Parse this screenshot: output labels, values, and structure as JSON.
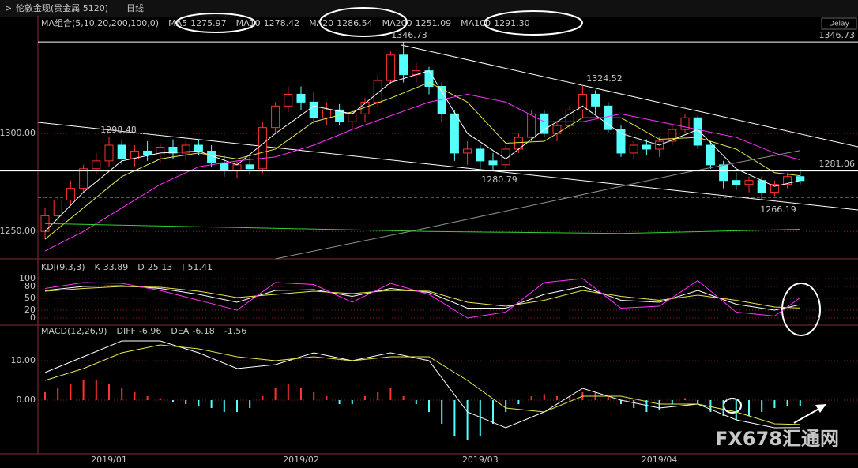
{
  "header": {
    "symbol": "伦敦金现(贵金属 5120)",
    "period": "日线",
    "delay": "Delay"
  },
  "watermark": "FX678汇通网",
  "chart_data": [
    {
      "type": "candlestick",
      "legend_title": "MA组合(5,10,20,200,100,0)",
      "categories": [
        null,
        null,
        null,
        null,
        null,
        "2019/01",
        null,
        null,
        null,
        null,
        null,
        null,
        null,
        null,
        null,
        null,
        null,
        null,
        null,
        null,
        "2019/02",
        null,
        null,
        null,
        null,
        null,
        null,
        null,
        null,
        null,
        null,
        null,
        null,
        null,
        "2019/03",
        null,
        null,
        null,
        null,
        null,
        null,
        null,
        null,
        null,
        null,
        null,
        null,
        null,
        "2019/04",
        null,
        null,
        null,
        null,
        null,
        null,
        null,
        null,
        null,
        null,
        null
      ],
      "candles": {
        "open": [
          1250,
          1258,
          1266,
          1272,
          1282,
          1286,
          1294,
          1287,
          1291,
          1289,
          1293,
          1290,
          1294,
          1291,
          1285,
          1281,
          1284,
          1282,
          1303,
          1314,
          1320,
          1316,
          1308,
          1312,
          1306,
          1310,
          1316,
          1327,
          1340,
          1330,
          1332,
          1324,
          1310,
          1290,
          1292,
          1286,
          1284,
          1292,
          1298,
          1310,
          1300,
          1304,
          1312,
          1320,
          1314,
          1302,
          1290,
          1294,
          1292,
          1296,
          1302,
          1308,
          1294,
          1284,
          1276,
          1274,
          1276,
          1270,
          1274,
          1278
        ],
        "high": [
          1262,
          1268,
          1276,
          1284,
          1290,
          1298.48,
          1297,
          1294,
          1296,
          1295,
          1297,
          1296,
          1297,
          1294,
          1289,
          1286,
          1288,
          1306,
          1316,
          1324,
          1324,
          1321,
          1316,
          1315,
          1312,
          1318,
          1330,
          1342,
          1346.73,
          1336,
          1334,
          1326,
          1312,
          1296,
          1294,
          1290,
          1294,
          1300,
          1312,
          1312,
          1306,
          1314,
          1324.52,
          1322,
          1316,
          1304,
          1296,
          1297,
          1298,
          1304,
          1310,
          1309,
          1296,
          1286,
          1280,
          1278,
          1278,
          1276,
          1280,
          1282
        ],
        "low": [
          1246,
          1255,
          1263,
          1270,
          1279,
          1283,
          1284,
          1283,
          1286,
          1285,
          1287,
          1286,
          1289,
          1283,
          1278,
          1277,
          1279,
          1280,
          1300,
          1311,
          1312,
          1305,
          1304,
          1304,
          1302,
          1306,
          1314,
          1325,
          1326,
          1326,
          1320,
          1306,
          1286,
          1284,
          1282,
          1280.79,
          1282,
          1290,
          1296,
          1298,
          1296,
          1302,
          1308,
          1310,
          1300,
          1288,
          1287,
          1289,
          1288,
          1294,
          1300,
          1292,
          1282,
          1272,
          1271,
          1270,
          1266.19,
          1268,
          1272,
          1274
        ],
        "close": [
          1258,
          1266,
          1272,
          1282,
          1286,
          1294,
          1287,
          1291,
          1289,
          1293,
          1290,
          1294,
          1291,
          1285,
          1281,
          1284,
          1282,
          1303,
          1314,
          1320,
          1316,
          1308,
          1312,
          1306,
          1310,
          1316,
          1327,
          1340,
          1330,
          1332,
          1324,
          1310,
          1290,
          1292,
          1286,
          1284,
          1292,
          1298,
          1310,
          1300,
          1304,
          1312,
          1320,
          1314,
          1302,
          1290,
          1294,
          1292,
          1296,
          1302,
          1308,
          1294,
          1284,
          1276,
          1274,
          1276,
          1270,
          1274,
          1278,
          1275.97
        ]
      },
      "up_color": "#ff3232",
      "down_color": "#54ffff",
      "ylim": [
        1236,
        1352
      ],
      "yticks": [
        {
          "value": 1250,
          "label": "1250.00"
        },
        {
          "value": 1300,
          "label": "1300.00"
        }
      ],
      "reference_line": 1281.06,
      "series": [
        {
          "name": "MA5",
          "color": "#ffffff",
          "x": [
            0,
            3,
            6,
            9,
            12,
            15,
            18,
            21,
            24,
            27,
            30,
            33,
            36,
            39,
            42,
            45,
            48,
            51,
            54,
            57,
            59
          ],
          "values": [
            1250,
            1270,
            1286,
            1290,
            1291,
            1284,
            1300,
            1314,
            1310,
            1326,
            1332,
            1300,
            1287,
            1302,
            1314,
            1300,
            1294,
            1302,
            1282,
            1273,
            1275.97
          ]
        },
        {
          "name": "MA10",
          "color": "#e6e64c",
          "x": [
            0,
            3,
            6,
            9,
            12,
            15,
            18,
            21,
            24,
            27,
            30,
            33,
            36,
            39,
            42,
            45,
            48,
            51,
            54,
            57,
            59
          ],
          "values": [
            1246,
            1262,
            1278,
            1287,
            1290,
            1287,
            1292,
            1306,
            1311,
            1318,
            1326,
            1316,
            1295,
            1296,
            1308,
            1308,
            1297,
            1298,
            1292,
            1280,
            1278.42
          ]
        },
        {
          "name": "MA20",
          "color": "#ff32ff",
          "x": [
            0,
            3,
            6,
            9,
            12,
            15,
            18,
            21,
            24,
            27,
            30,
            33,
            36,
            39,
            42,
            45,
            48,
            51,
            54,
            57,
            59
          ],
          "values": [
            1240,
            1250,
            1262,
            1274,
            1283,
            1286,
            1288,
            1294,
            1302,
            1309,
            1316,
            1320,
            1316,
            1306,
            1306,
            1310,
            1306,
            1302,
            1298,
            1290,
            1286.54
          ]
        },
        {
          "name": "MA200",
          "color": "#32d232",
          "x": [
            0,
            15,
            30,
            45,
            59
          ],
          "values": [
            1254,
            1252,
            1250,
            1249,
            1251.09
          ]
        },
        {
          "name": "MA100",
          "color": "#909090",
          "value_label": "1291.30",
          "x": [
            18,
            30,
            40,
            50,
            59
          ],
          "values": [
            1236,
            1252,
            1266,
            1280,
            1291.3
          ]
        }
      ]
    },
    {
      "type": "line",
      "legend_title": "KDJ(9,3,3)",
      "x": [
        0,
        3,
        6,
        9,
        12,
        15,
        18,
        21,
        24,
        27,
        30,
        33,
        36,
        39,
        42,
        45,
        48,
        51,
        54,
        57,
        59
      ],
      "ylim": [
        -14,
        126
      ],
      "yticks": [
        0,
        20,
        50,
        80,
        100
      ],
      "series": [
        {
          "name": "K",
          "color": "#ffffff",
          "values": [
            70,
            80,
            82,
            75,
            60,
            40,
            70,
            72,
            55,
            75,
            65,
            25,
            25,
            60,
            80,
            45,
            40,
            70,
            35,
            20,
            33.89
          ]
        },
        {
          "name": "D",
          "color": "#e6e64c",
          "values": [
            68,
            75,
            80,
            78,
            68,
            52,
            60,
            68,
            62,
            70,
            68,
            40,
            30,
            45,
            70,
            55,
            45,
            58,
            45,
            28,
            25.13
          ]
        },
        {
          "name": "J",
          "color": "#ff32ff",
          "values": [
            75,
            90,
            88,
            70,
            45,
            20,
            90,
            85,
            40,
            88,
            60,
            0,
            15,
            90,
            100,
            25,
            30,
            95,
            15,
            5,
            51.41
          ]
        }
      ]
    },
    {
      "type": "macd",
      "legend_title": "MACD(12,26,9)",
      "x": [
        0,
        3,
        6,
        9,
        12,
        15,
        18,
        21,
        24,
        27,
        30,
        33,
        36,
        39,
        42,
        45,
        48,
        51,
        54,
        57,
        59
      ],
      "ylim": [
        -13.6,
        17.4
      ],
      "yticks": [
        {
          "value": 0,
          "label": "0.00"
        },
        {
          "value": 10,
          "label": "10.00"
        }
      ],
      "up_color": "#ff3232",
      "down_color": "#54ffff",
      "histogram": [
        2,
        3,
        4,
        5,
        5,
        4,
        3,
        2,
        1,
        0.5,
        -0.5,
        -1,
        -1.5,
        -2,
        -3,
        -3,
        -2,
        1,
        3,
        4,
        3,
        2,
        1,
        -1,
        -1,
        1,
        2,
        3,
        1,
        -1,
        -3,
        -6,
        -9,
        -10,
        -9,
        -6,
        -3,
        -1,
        1,
        1.5,
        1,
        1,
        2,
        2,
        1,
        -1,
        -2,
        -3,
        -2.5,
        -1,
        0.5,
        -1,
        -3,
        -4,
        -5,
        -4,
        -3,
        -2,
        -1.5,
        -1.56
      ],
      "series": [
        {
          "name": "DIFF",
          "color": "#ffffff",
          "values": [
            7,
            11,
            15,
            15,
            12,
            8,
            9,
            12,
            10,
            12,
            10,
            -3,
            -7,
            -3,
            3,
            0,
            -2,
            -1,
            -5,
            -7,
            -6.96
          ]
        },
        {
          "name": "DEA",
          "color": "#e6e64c",
          "values": [
            5,
            8,
            12,
            14,
            13,
            11,
            10,
            11,
            10,
            11,
            11,
            5,
            -2,
            -3,
            1,
            1,
            -1,
            -1,
            -3,
            -6,
            -6.18
          ]
        }
      ]
    }
  ]
}
